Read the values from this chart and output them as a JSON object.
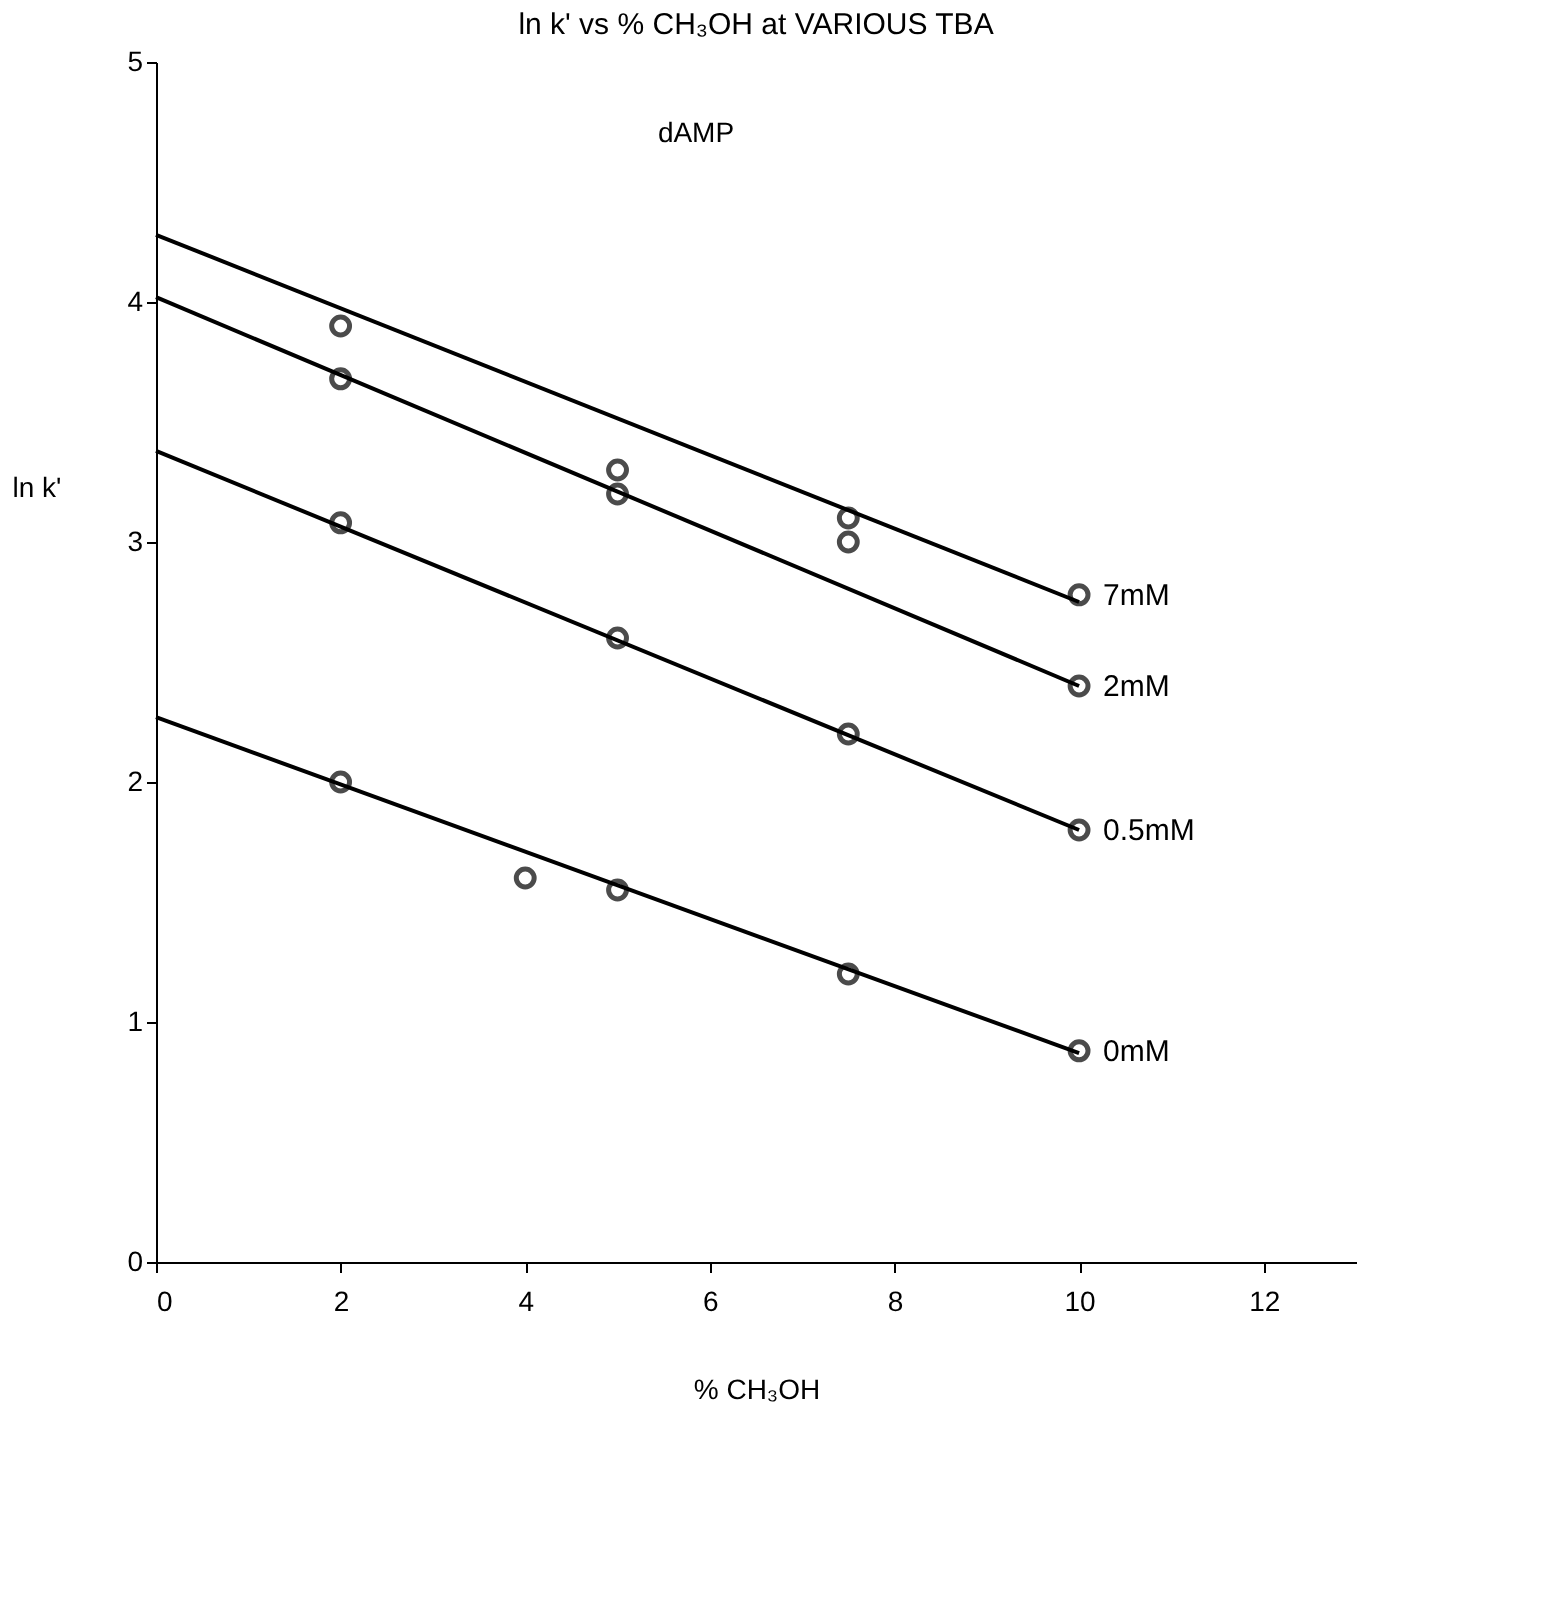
{
  "chart_data": {
    "type": "scatter",
    "title": "ln k' vs % CH₃OH at VARIOUS TBA",
    "xlabel": "% CH₃OH",
    "ylabel": "ln k'",
    "annotations": [
      "dAMP"
    ],
    "xlim": [
      0,
      13
    ],
    "xticks": [
      0,
      2,
      4,
      6,
      8,
      10,
      12
    ],
    "ylim": [
      0,
      5
    ],
    "yticks": [
      0,
      1,
      2,
      3,
      4,
      5
    ],
    "grid": false,
    "marker": "circle",
    "series": [
      {
        "name": "7mM",
        "color": "#000000",
        "x": [
          2,
          5,
          7.5,
          10
        ],
        "values": [
          3.9,
          3.3,
          3.1,
          2.78
        ]
      },
      {
        "name": "2mM",
        "color": "#000000",
        "x": [
          2,
          5,
          7.5,
          10
        ],
        "values": [
          3.68,
          3.2,
          3.0,
          2.4
        ]
      },
      {
        "name": "0.5mM",
        "color": "#000000",
        "x": [
          2,
          5,
          7.5,
          10
        ],
        "values": [
          3.08,
          2.6,
          2.2,
          1.8
        ]
      },
      {
        "name": "0mM",
        "color": "#000000",
        "x": [
          2,
          4,
          5,
          7.5,
          10
        ],
        "values": [
          2.0,
          1.6,
          1.55,
          1.2,
          0.88
        ]
      },
      {
        "type": "line",
        "color": "#000000",
        "line_style": "solid",
        "marker": "none",
        "x": [
          0,
          10
        ],
        "values": [
          4.28,
          2.75
        ]
      },
      {
        "type": "line",
        "color": "#000000",
        "line_style": "solid",
        "marker": "none",
        "x": [
          0,
          10
        ],
        "values": [
          4.02,
          2.4
        ]
      },
      {
        "type": "line",
        "color": "#000000",
        "line_style": "solid",
        "marker": "none",
        "x": [
          0,
          10
        ],
        "values": [
          3.38,
          1.8
        ]
      },
      {
        "type": "line",
        "color": "#000000",
        "line_style": "solid",
        "marker": "none",
        "x": [
          0,
          10
        ],
        "values": [
          2.27,
          0.87
        ]
      }
    ]
  }
}
